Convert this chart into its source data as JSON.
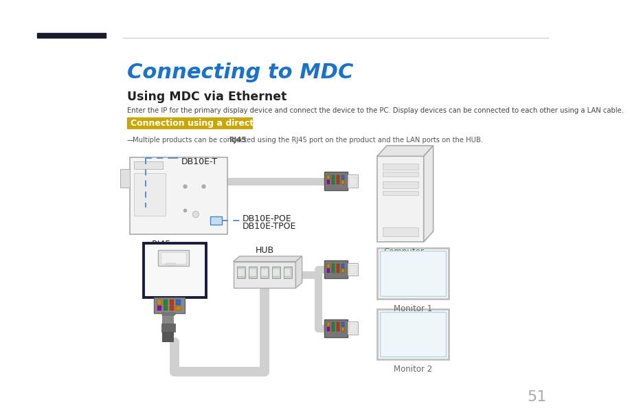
{
  "title": "Connecting to MDC",
  "subtitle": "Using MDC via Ethernet",
  "description": "Enter the IP for the primary display device and connect the device to the PC. Display devices can be connected to each other using a LAN cable.",
  "highlight_text": "Connection using a direct LAN cable",
  "note_plain1": "Multiple products can be connected using the ",
  "note_bold": "RJ45",
  "note_plain2": " port on the product and the LAN ports on the HUB.",
  "label_db10et": "DB10E-T",
  "label_db10epoe": "DB10E-POE",
  "label_db10tpoe": "DB10E-TPOE",
  "label_rj45": "RJ45",
  "label_hub": "HUB",
  "label_computer": "Computer",
  "label_monitor1": "Monitor 1",
  "label_monitor2": "Monitor 2",
  "page_number": "51",
  "title_color": "#1a73c8",
  "highlight_bg": "#c8a800",
  "highlight_text_color": "#ffffff",
  "cable_color": "#d0d0d0",
  "blue_dash_color": "#4488cc",
  "dark_border": "#1a1a3a",
  "background": "#ffffff",
  "text_dark": "#222222",
  "text_gray": "#555555",
  "wire_colors_top": [
    "#555555",
    "#228822",
    "#cc3300",
    "#cc8800"
  ],
  "wire_colors_bot": [
    "#555555",
    "#9944aa",
    "#cc3300",
    "#cc8800"
  ],
  "connector_body": "#777777",
  "conn_socket_color": "#eeeeee"
}
